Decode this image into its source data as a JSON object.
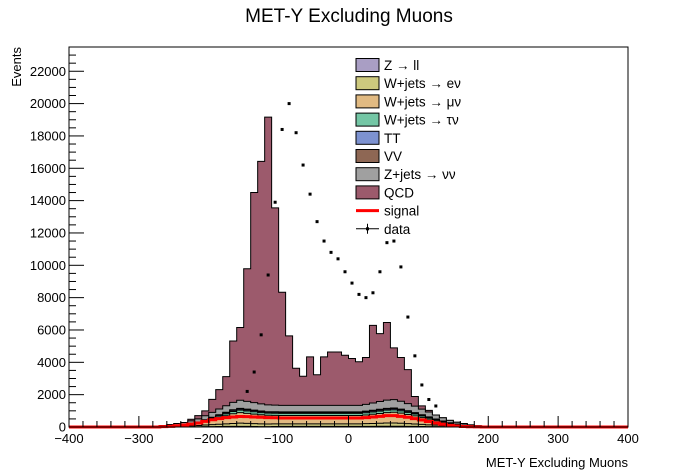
{
  "chart_data": {
    "type": "histogram",
    "title": "MET-Y Excluding Muons",
    "xlabel": "MET-Y Excluding Muons",
    "ylabel": "Events",
    "xlim": [
      -400,
      400
    ],
    "ylim": [
      0,
      23500
    ],
    "x_ticks": [
      -400,
      -300,
      -200,
      -100,
      0,
      100,
      200,
      300,
      400
    ],
    "y_ticks": [
      0,
      2000,
      4000,
      6000,
      8000,
      10000,
      12000,
      14000,
      16000,
      18000,
      20000,
      22000
    ],
    "legend_position": "top-center",
    "bin_edges_start": -400,
    "bin_width": 10,
    "stack_order": [
      "Z → ll",
      "W+jets → eν",
      "W+jets → μν",
      "W+jets → τν",
      "TT",
      "VV",
      "Z+jets → νν",
      "QCD"
    ],
    "series": [
      {
        "name": "Z → ll",
        "color": "#a99ec4",
        "values": [
          0,
          0,
          0,
          0,
          0,
          0,
          0,
          0,
          0,
          0,
          0,
          0,
          0,
          0,
          5,
          5,
          10,
          10,
          15,
          20,
          25,
          30,
          35,
          40,
          40,
          35,
          30,
          25,
          25,
          30,
          35,
          35,
          35,
          35,
          35,
          35,
          35,
          35,
          35,
          35,
          35,
          35,
          35,
          40,
          45,
          50,
          50,
          45,
          40,
          35,
          30,
          25,
          25,
          20,
          15,
          10,
          10,
          5,
          5,
          5,
          0,
          0,
          0,
          0,
          0,
          0,
          0,
          0,
          0,
          0,
          0,
          0,
          0,
          0,
          0,
          0,
          0,
          0,
          0,
          0
        ]
      },
      {
        "name": "W+jets → eν",
        "color": "#cdc97e",
        "values": [
          0,
          0,
          0,
          0,
          0,
          0,
          0,
          0,
          0,
          0,
          0,
          0,
          0,
          10,
          20,
          30,
          40,
          60,
          80,
          100,
          120,
          140,
          160,
          180,
          200,
          190,
          180,
          170,
          160,
          160,
          160,
          160,
          160,
          160,
          160,
          160,
          160,
          160,
          160,
          160,
          160,
          160,
          170,
          180,
          190,
          200,
          200,
          190,
          170,
          150,
          130,
          110,
          90,
          70,
          50,
          40,
          30,
          20,
          10,
          5,
          0,
          0,
          0,
          0,
          0,
          0,
          0,
          0,
          0,
          0,
          0,
          0,
          0,
          0,
          0,
          0,
          0,
          0,
          0,
          0
        ]
      },
      {
        "name": "W+jets → μν",
        "color": "#e1ba82",
        "values": [
          0,
          0,
          0,
          0,
          0,
          0,
          0,
          0,
          0,
          0,
          0,
          0,
          0,
          10,
          20,
          40,
          60,
          90,
          120,
          200,
          300,
          400,
          500,
          600,
          650,
          620,
          590,
          560,
          540,
          530,
          520,
          520,
          520,
          520,
          520,
          520,
          520,
          520,
          520,
          520,
          520,
          520,
          540,
          570,
          600,
          640,
          660,
          620,
          560,
          500,
          420,
          350,
          270,
          200,
          140,
          90,
          60,
          30,
          15,
          5,
          0,
          0,
          0,
          0,
          0,
          0,
          0,
          0,
          0,
          0,
          0,
          0,
          0,
          0,
          0,
          0,
          0,
          0,
          0,
          0
        ]
      },
      {
        "name": "W+jets → τν",
        "color": "#74c6a5",
        "values": [
          0,
          0,
          0,
          0,
          0,
          0,
          0,
          0,
          0,
          0,
          0,
          0,
          0,
          5,
          10,
          15,
          20,
          30,
          40,
          60,
          80,
          100,
          120,
          140,
          150,
          145,
          140,
          135,
          130,
          130,
          130,
          130,
          130,
          130,
          130,
          130,
          130,
          130,
          130,
          130,
          130,
          130,
          135,
          140,
          145,
          150,
          150,
          145,
          135,
          120,
          100,
          80,
          60,
          45,
          30,
          20,
          15,
          10,
          5,
          0,
          0,
          0,
          0,
          0,
          0,
          0,
          0,
          0,
          0,
          0,
          0,
          0,
          0,
          0,
          0,
          0,
          0,
          0,
          0,
          0
        ]
      },
      {
        "name": "TT",
        "color": "#7d92d0",
        "values": [
          0,
          0,
          0,
          0,
          0,
          0,
          0,
          0,
          0,
          0,
          0,
          0,
          0,
          5,
          10,
          15,
          20,
          25,
          30,
          40,
          50,
          55,
          60,
          65,
          70,
          70,
          65,
          60,
          55,
          55,
          55,
          55,
          55,
          55,
          55,
          55,
          55,
          55,
          55,
          55,
          55,
          55,
          60,
          65,
          70,
          70,
          70,
          65,
          60,
          50,
          45,
          35,
          30,
          20,
          15,
          10,
          5,
          5,
          0,
          0,
          0,
          0,
          0,
          0,
          0,
          0,
          0,
          0,
          0,
          0,
          0,
          0,
          0,
          0,
          0,
          0,
          0,
          0,
          0,
          0
        ]
      },
      {
        "name": "VV",
        "color": "#8e6754",
        "values": [
          0,
          0,
          0,
          0,
          0,
          0,
          0,
          0,
          0,
          0,
          0,
          0,
          0,
          5,
          5,
          10,
          10,
          15,
          20,
          25,
          30,
          35,
          40,
          45,
          45,
          45,
          40,
          40,
          35,
          35,
          35,
          35,
          35,
          35,
          35,
          35,
          35,
          35,
          35,
          35,
          35,
          35,
          40,
          40,
          45,
          45,
          45,
          40,
          40,
          35,
          30,
          25,
          20,
          15,
          10,
          5,
          5,
          0,
          0,
          0,
          0,
          0,
          0,
          0,
          0,
          0,
          0,
          0,
          0,
          0,
          0,
          0,
          0,
          0,
          0,
          0,
          0,
          0,
          0,
          0
        ]
      },
      {
        "name": "Z+jets → νν",
        "color": "#a0a0a0",
        "values": [
          5,
          5,
          5,
          5,
          5,
          5,
          10,
          10,
          10,
          10,
          15,
          15,
          20,
          50,
          80,
          100,
          120,
          150,
          200,
          250,
          300,
          350,
          400,
          450,
          500,
          480,
          460,
          440,
          420,
          410,
          400,
          400,
          400,
          400,
          400,
          400,
          400,
          400,
          400,
          400,
          400,
          400,
          420,
          450,
          480,
          510,
          520,
          490,
          440,
          400,
          350,
          300,
          250,
          200,
          150,
          120,
          90,
          60,
          40,
          30,
          20,
          15,
          10,
          5,
          5,
          5,
          5,
          5,
          5,
          5,
          5,
          5,
          5,
          5,
          5,
          5,
          5,
          5,
          5,
          5
        ]
      },
      {
        "name": "QCD",
        "color": "#9c5a6c",
        "values": [
          0,
          0,
          0,
          0,
          0,
          0,
          0,
          0,
          0,
          0,
          0,
          0,
          0,
          0,
          0,
          0,
          0,
          100,
          200,
          300,
          800,
          1200,
          1800,
          3800,
          4500,
          8200,
          13000,
          15000,
          17800,
          12200,
          7000,
          4300,
          2300,
          1800,
          3000,
          1900,
          3000,
          3300,
          3300,
          3100,
          2900,
          2700,
          2900,
          4800,
          4200,
          4800,
          3200,
          2700,
          2100,
          600,
          200,
          100,
          0,
          0,
          0,
          0,
          0,
          0,
          0,
          0,
          0,
          0,
          0,
          0,
          0,
          0,
          0,
          0,
          0,
          0,
          0,
          0,
          0,
          0,
          0,
          0,
          0,
          0,
          0,
          0
        ]
      }
    ],
    "signal": {
      "name": "signal",
      "color": "#ff0000",
      "values": [
        0,
        0,
        0,
        0,
        0,
        0,
        0,
        0,
        0,
        0,
        0,
        0,
        0,
        20,
        40,
        80,
        120,
        180,
        250,
        350,
        450,
        520,
        580,
        620,
        650,
        640,
        620,
        600,
        580,
        570,
        560,
        560,
        560,
        560,
        560,
        560,
        560,
        560,
        560,
        560,
        560,
        560,
        580,
        620,
        660,
        700,
        700,
        660,
        600,
        520,
        430,
        340,
        250,
        170,
        100,
        60,
        30,
        15,
        5,
        0,
        0,
        0,
        0,
        0,
        0,
        0,
        0,
        0,
        0,
        0,
        0,
        0,
        0,
        0,
        0,
        0,
        0,
        0,
        0,
        0
      ]
    },
    "data": {
      "name": "data",
      "points": [
        {
          "x": -145,
          "y": 2200
        },
        {
          "x": -135,
          "y": 3400
        },
        {
          "x": -125,
          "y": 5700
        },
        {
          "x": -115,
          "y": 9400
        },
        {
          "x": -105,
          "y": 13900
        },
        {
          "x": -95,
          "y": 18400
        },
        {
          "x": -85,
          "y": 20000
        },
        {
          "x": -75,
          "y": 18200
        },
        {
          "x": -65,
          "y": 16200
        },
        {
          "x": -55,
          "y": 14400
        },
        {
          "x": -45,
          "y": 12700
        },
        {
          "x": -35,
          "y": 11500
        },
        {
          "x": -25,
          "y": 10800
        },
        {
          "x": -15,
          "y": 10400
        },
        {
          "x": -5,
          "y": 9600
        },
        {
          "x": 5,
          "y": 8900
        },
        {
          "x": 15,
          "y": 8200
        },
        {
          "x": 25,
          "y": 8000
        },
        {
          "x": 35,
          "y": 8300
        },
        {
          "x": 45,
          "y": 9600
        },
        {
          "x": 55,
          "y": 11400
        },
        {
          "x": 65,
          "y": 11500
        },
        {
          "x": 75,
          "y": 9900
        },
        {
          "x": 85,
          "y": 6800
        },
        {
          "x": 95,
          "y": 4400
        },
        {
          "x": 105,
          "y": 2600
        },
        {
          "x": 115,
          "y": 1700
        },
        {
          "x": 125,
          "y": 1300
        }
      ]
    },
    "legend": [
      {
        "label": "Z → ll",
        "kind": "box",
        "color": "#a99ec4"
      },
      {
        "label": "W+jets → eν",
        "kind": "box",
        "color": "#cdc97e"
      },
      {
        "label": "W+jets → μν",
        "kind": "box",
        "color": "#e1ba82"
      },
      {
        "label": "W+jets → τν",
        "kind": "box",
        "color": "#74c6a5"
      },
      {
        "label": "TT",
        "kind": "box",
        "color": "#7d92d0"
      },
      {
        "label": "VV",
        "kind": "box",
        "color": "#8e6754"
      },
      {
        "label": "Z+jets → νν",
        "kind": "box",
        "color": "#a0a0a0"
      },
      {
        "label": "QCD",
        "kind": "box",
        "color": "#9c5a6c"
      },
      {
        "label": "signal",
        "kind": "line",
        "color": "#ff0000"
      },
      {
        "label": "data",
        "kind": "marker",
        "color": "#000000"
      }
    ]
  }
}
